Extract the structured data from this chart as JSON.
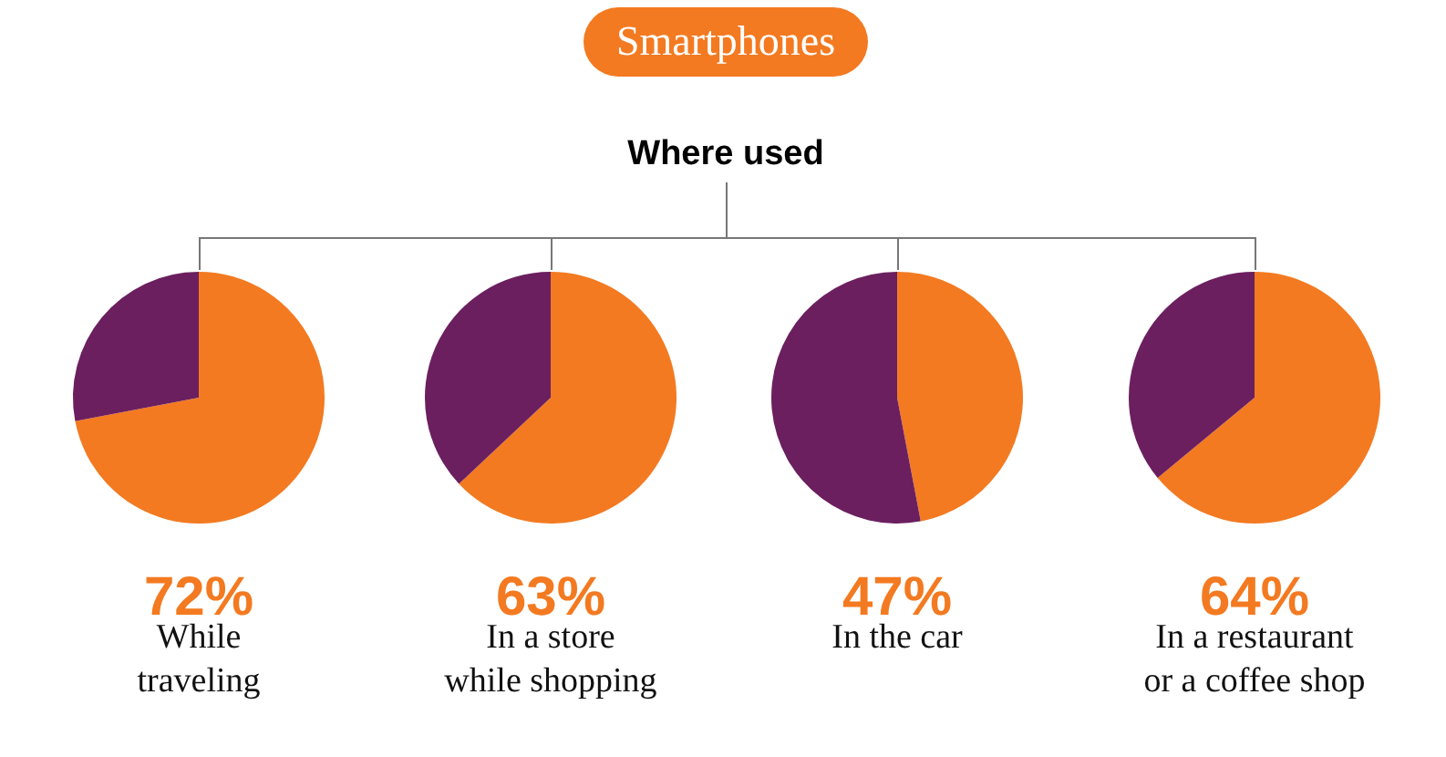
{
  "chart_data": [
    {
      "type": "other",
      "title": "Smartphones",
      "subtitle": "Where used"
    },
    {
      "type": "pie",
      "title": "While\ntraveling",
      "categories": [
        null,
        null
      ],
      "values": [
        72,
        28
      ],
      "colors": [
        "#f37a21",
        "#6b1f5f"
      ],
      "value_labels": [
        "72%",
        null
      ]
    },
    {
      "type": "pie",
      "title": "In a store\nwhile shopping",
      "categories": [
        null,
        null
      ],
      "values": [
        63,
        37
      ],
      "colors": [
        "#f37a21",
        "#6b1f5f"
      ],
      "value_labels": [
        "63%",
        null
      ]
    },
    {
      "type": "pie",
      "title": "In the car",
      "categories": [
        null,
        null
      ],
      "values": [
        47,
        53
      ],
      "colors": [
        "#f37a21",
        "#6b1f5f"
      ],
      "value_labels": [
        "47%",
        null
      ]
    },
    {
      "type": "pie",
      "title": "In a restaurant\nor a coffee shop",
      "categories": [
        null,
        null
      ],
      "values": [
        64,
        36
      ],
      "colors": [
        "#f37a21",
        "#6b1f5f"
      ],
      "value_labels": [
        "64%",
        null
      ]
    }
  ]
}
